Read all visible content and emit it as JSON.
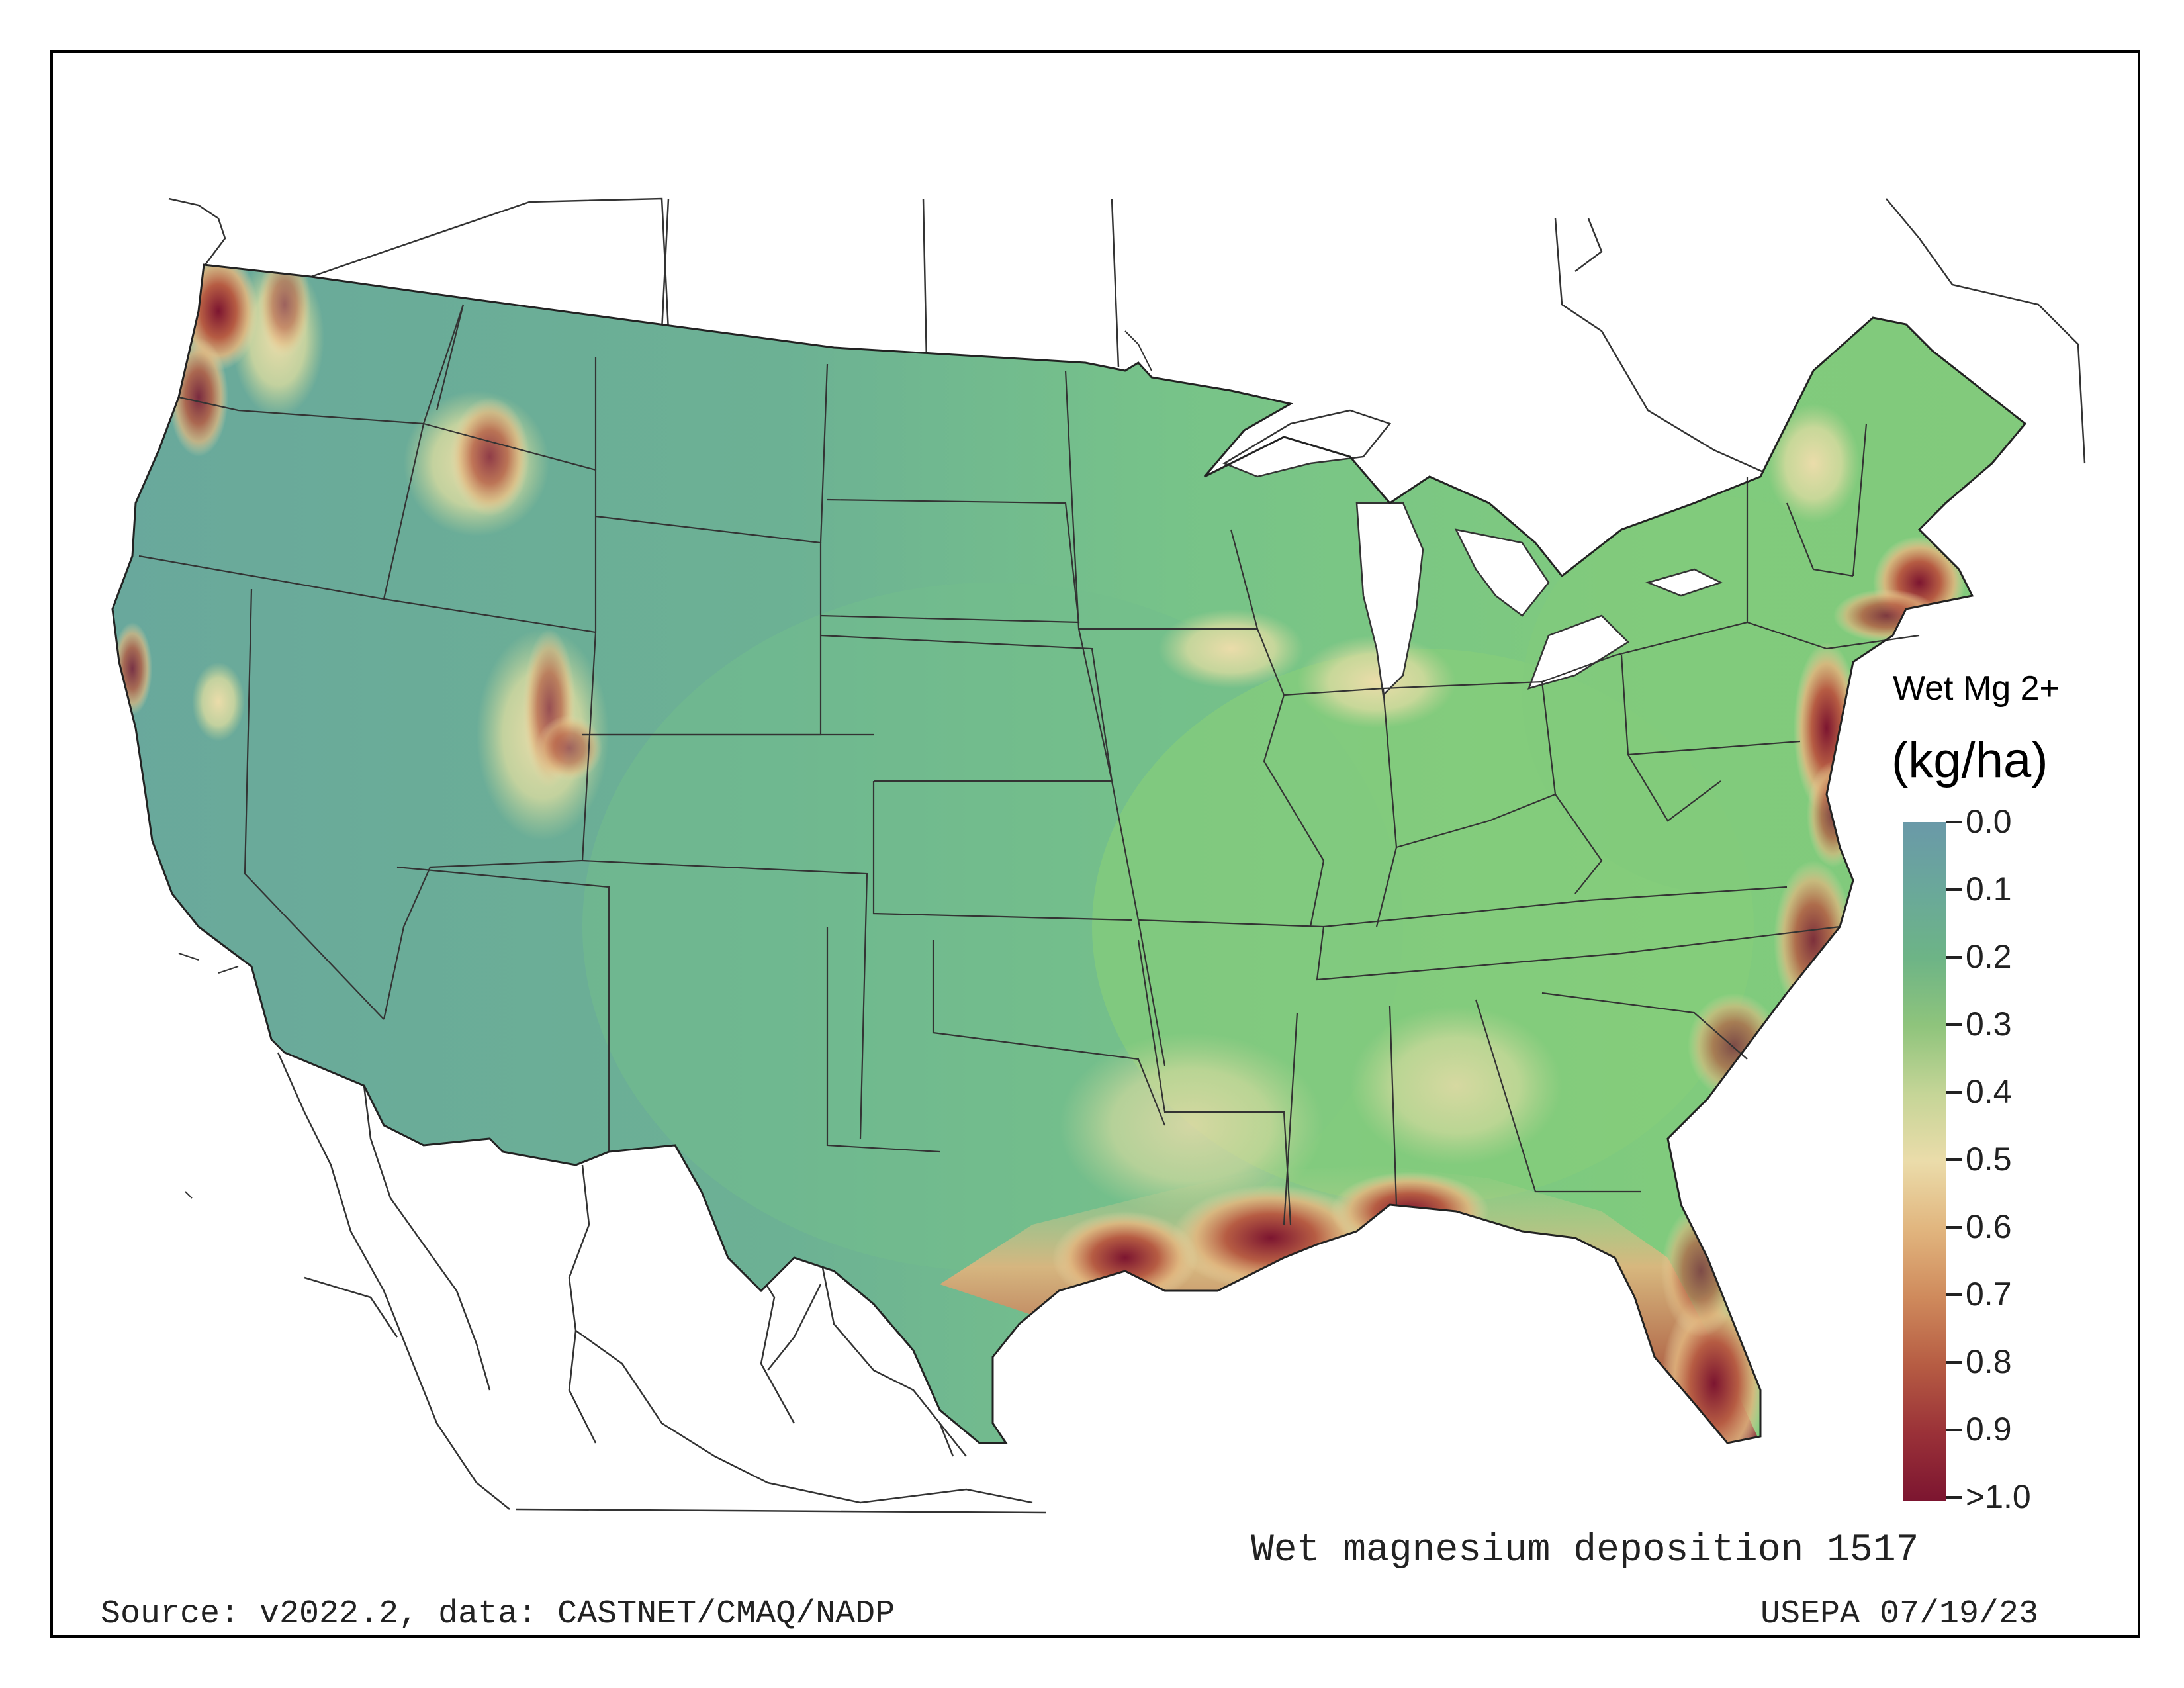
{
  "map": {
    "title": "Wet magnesium deposition 1517",
    "source": "Source: v2022.2, data: CASTNET/CMAQ/NADP",
    "credit": "USEPA 07/19/23"
  },
  "legend": {
    "title": "Wet Mg 2+",
    "units": "(kg/ha)",
    "ticks": [
      "0.0",
      "0.1",
      "0.2",
      "0.3",
      "0.4",
      "0.5",
      "0.6",
      "0.7",
      "0.8",
      "0.9",
      ">1.0"
    ],
    "colors": [
      "#6a99a8",
      "#6aa89a",
      "#6db486",
      "#8fc47c",
      "#c5d597",
      "#ebdcaa",
      "#e1b57e",
      "#cf8a5c",
      "#b65c43",
      "#9a3138",
      "#7c1530"
    ]
  },
  "colors": {
    "base_west": "#6aaa9c",
    "base_plains": "#75c08a",
    "base_east": "#7ec97e",
    "high": "#ebdcaa",
    "very_high": "#b65c43",
    "max": "#6b0a2a",
    "water": "#ffffff",
    "boundary": "#333333"
  }
}
